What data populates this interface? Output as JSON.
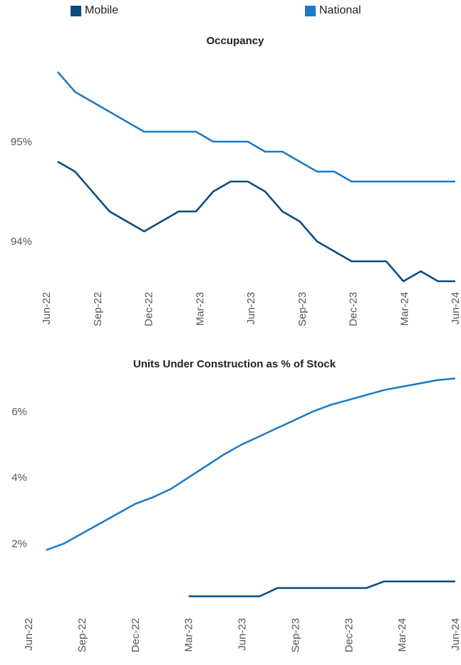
{
  "legend": {
    "items": [
      {
        "label": "Mobile",
        "color": "#0b4a7d"
      },
      {
        "label": "National",
        "color": "#1a7ac9"
      }
    ]
  },
  "chart_data": [
    {
      "type": "line",
      "title": "Occupancy",
      "x_ticks": [
        "Jun-22",
        "Sep-22",
        "Dec-22",
        "Mar-23",
        "Jun-23",
        "Sep-23",
        "Dec-23",
        "Mar-24",
        "Jun-24"
      ],
      "y_ticks": [
        "94%",
        "95%"
      ],
      "y_tick_values": [
        94,
        95
      ],
      "ylim": [
        93.55,
        95.85
      ],
      "x": [
        "Jul-22",
        "Aug-22",
        "Sep-22",
        "Oct-22",
        "Nov-22",
        "Dec-22",
        "Jan-23",
        "Feb-23",
        "Mar-23",
        "Apr-23",
        "May-23",
        "Jun-23",
        "Jul-23",
        "Aug-23",
        "Sep-23",
        "Oct-23",
        "Nov-23",
        "Dec-23",
        "Jan-24",
        "Feb-24",
        "Mar-24",
        "Apr-24",
        "May-24",
        "Jun-24"
      ],
      "series": [
        {
          "name": "National",
          "color": "#1a7ac9",
          "values": [
            95.7,
            95.5,
            95.4,
            95.3,
            95.2,
            95.1,
            95.1,
            95.1,
            95.1,
            95.0,
            95.0,
            95.0,
            94.9,
            94.9,
            94.8,
            94.7,
            94.7,
            94.6,
            94.6,
            94.6,
            94.6,
            94.6,
            94.6,
            94.6
          ]
        },
        {
          "name": "Mobile",
          "color": "#0b4a7d",
          "values": [
            94.8,
            94.7,
            94.5,
            94.3,
            94.2,
            94.1,
            94.2,
            94.3,
            94.3,
            94.5,
            94.6,
            94.6,
            94.5,
            94.3,
            94.2,
            94.0,
            93.9,
            93.8,
            93.8,
            93.8,
            93.6,
            93.7,
            93.6,
            93.6
          ]
        }
      ]
    },
    {
      "type": "line",
      "title": "Units Under Construction as % of Stock",
      "x_ticks": [
        "Jun-22",
        "Sep-22",
        "Dec-22",
        "Mar-23",
        "Jun-23",
        "Sep-23",
        "Dec-23",
        "Mar-24",
        "Jun-24"
      ],
      "y_ticks": [
        "2%",
        "4%",
        "6%"
      ],
      "y_tick_values": [
        2,
        4,
        6
      ],
      "ylim": [
        0,
        7.4
      ],
      "x": [
        "Jul-22",
        "Aug-22",
        "Sep-22",
        "Oct-22",
        "Nov-22",
        "Dec-22",
        "Jan-23",
        "Feb-23",
        "Mar-23",
        "Apr-23",
        "May-23",
        "Jun-23",
        "Jul-23",
        "Aug-23",
        "Sep-23",
        "Oct-23",
        "Nov-23",
        "Dec-23",
        "Jan-24",
        "Feb-24",
        "Mar-24",
        "Apr-24",
        "May-24",
        "Jun-24"
      ],
      "series": [
        {
          "name": "National",
          "color": "#1a7ac9",
          "values": [
            1.8,
            2.0,
            2.3,
            2.6,
            2.9,
            3.2,
            3.4,
            3.65,
            4.0,
            4.35,
            4.7,
            5.0,
            5.25,
            5.5,
            5.75,
            6.0,
            6.2,
            6.35,
            6.5,
            6.65,
            6.75,
            6.85,
            6.95,
            7.0
          ]
        },
        {
          "name": "Mobile",
          "color": "#0b4a7d",
          "values": [
            null,
            null,
            null,
            null,
            null,
            null,
            null,
            null,
            0.4,
            0.4,
            0.4,
            0.4,
            0.4,
            0.65,
            0.65,
            0.65,
            0.65,
            0.65,
            0.65,
            0.85,
            0.85,
            0.85,
            0.85,
            0.85
          ]
        }
      ]
    }
  ]
}
